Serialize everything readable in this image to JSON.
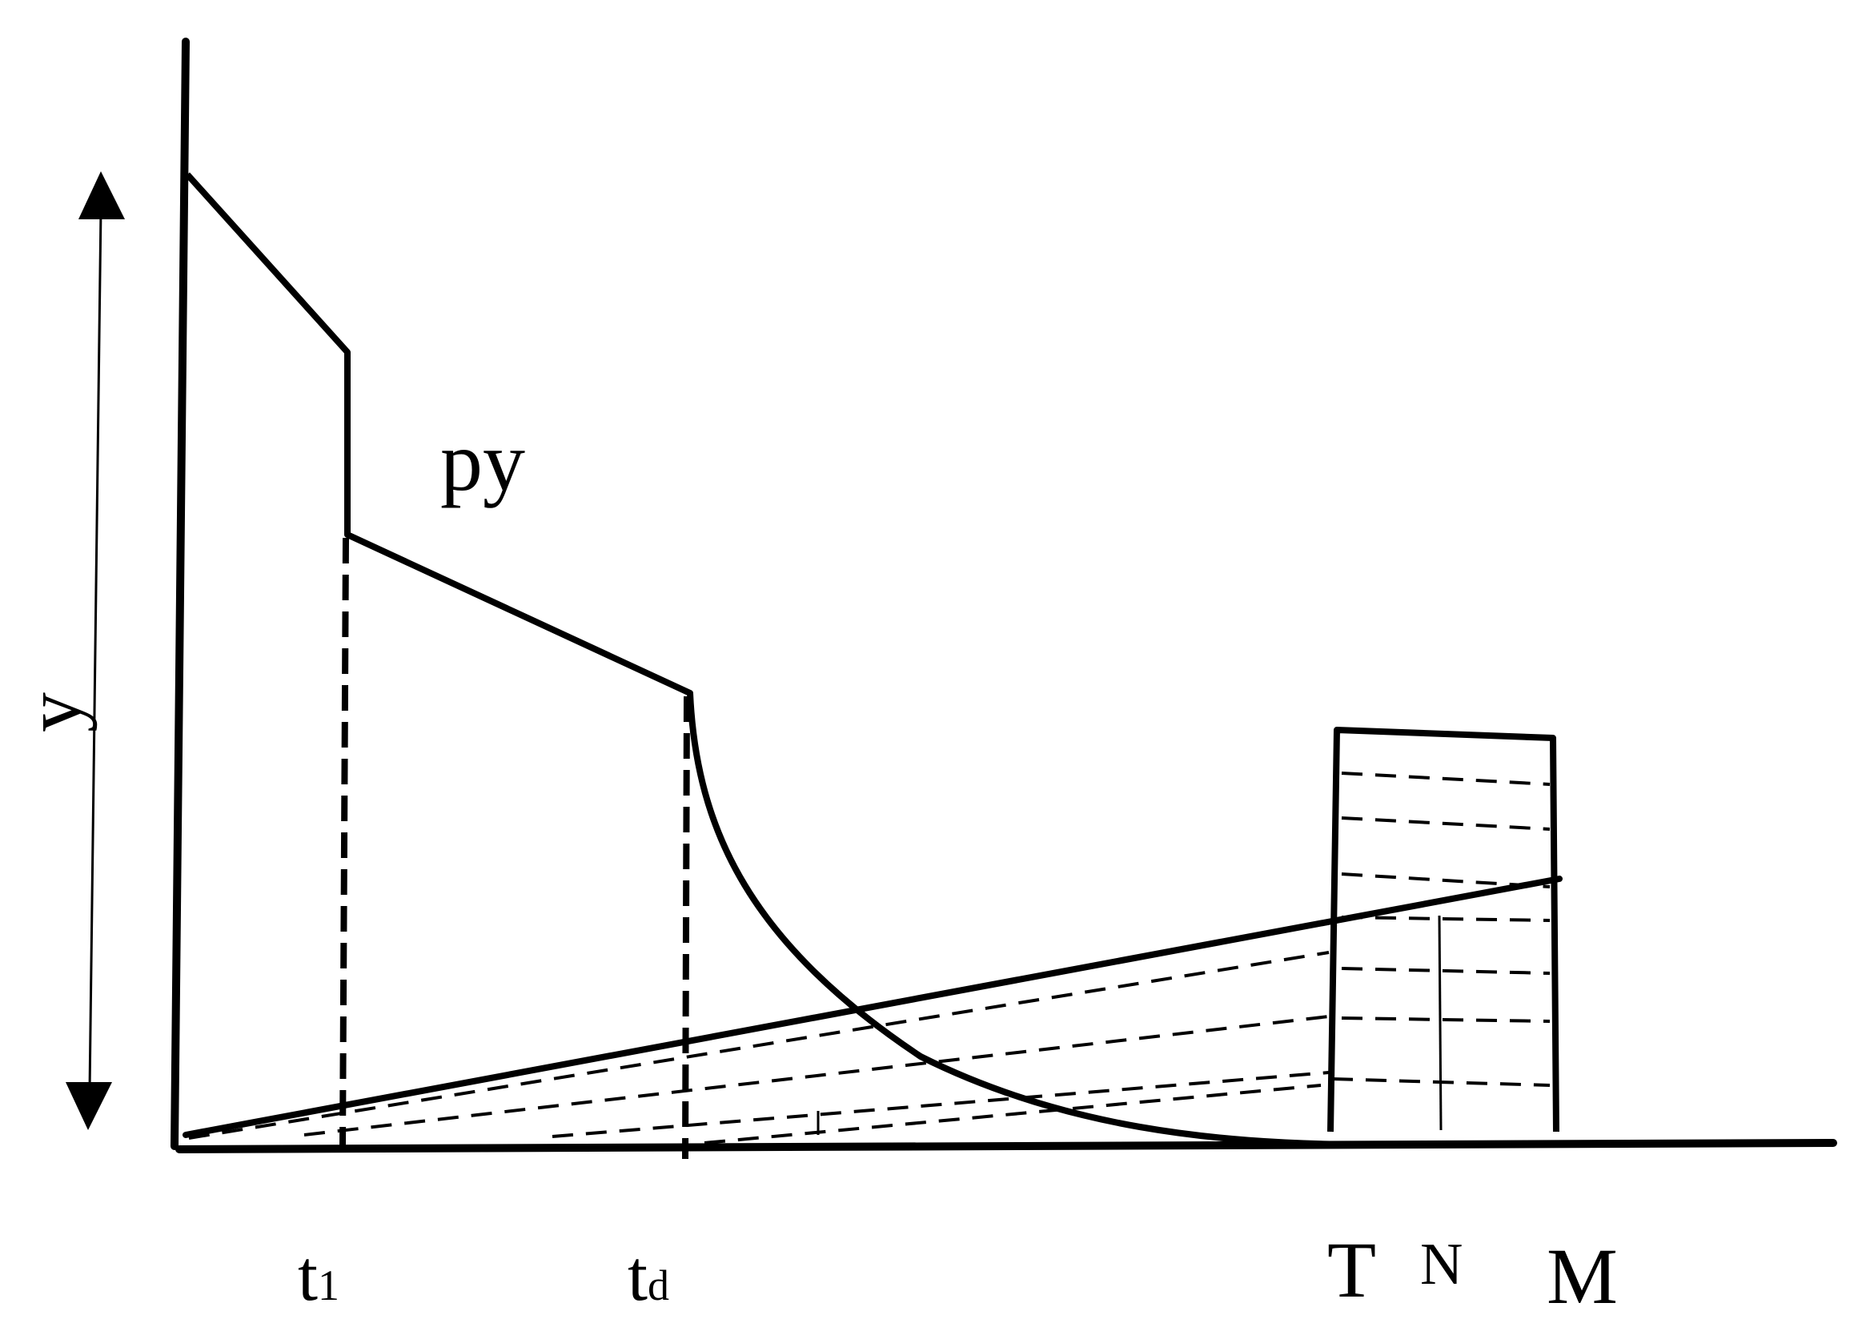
{
  "labels": {
    "curve": "py",
    "axis_y": "y",
    "t1_base": "t",
    "t1_sub": "1",
    "td_base": "t",
    "td_sub": "d",
    "mark_T": "T",
    "mark_N": "N",
    "mark_M": "M"
  },
  "colors": {
    "ink": "#000000",
    "background": "#ffffff"
  }
}
